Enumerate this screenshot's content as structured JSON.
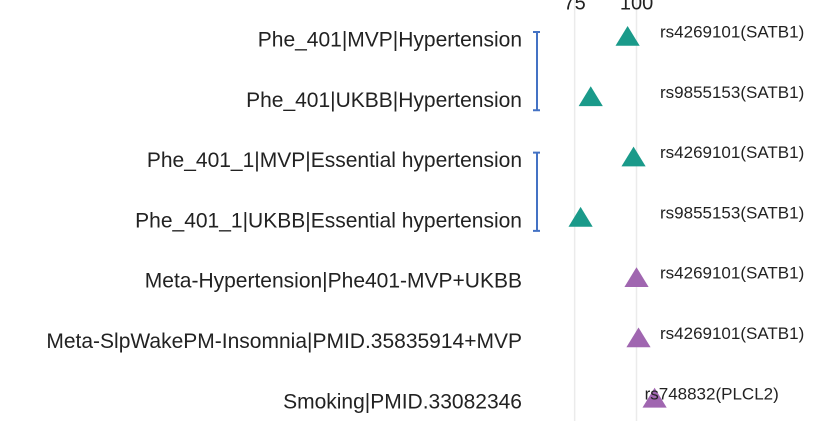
{
  "chart_data": {
    "type": "scatter",
    "marker": "triangle",
    "categories": [
      "Phe_401|MVP|Hypertension",
      "Phe_401|UKBB|Hypertension",
      "Phe_401_1|MVP|Essential hypertension",
      "Phe_401_1|UKBB|Essential hypertension",
      "Meta-Hypertension|Phe401-MVP+UKBB",
      "Meta-SlpWakePM-Insomnia|PMID.35835914+MVP",
      "Smoking|PMID.33082346"
    ],
    "values": [
      96.4,
      81.5,
      98.8,
      77.4,
      100,
      100.8,
      107.3
    ],
    "point_colors": [
      "#1a9a8a",
      "#1a9a8a",
      "#1a9a8a",
      "#1a9a8a",
      "#a066b0",
      "#a066b0",
      "#a066b0"
    ],
    "point_labels": [
      "rs4269101(SATB1)",
      "rs9855153(SATB1)",
      "rs4269101(SATB1)",
      "rs9855153(SATB1)",
      "rs4269101(SATB1)",
      "rs4269101(SATB1)",
      "rs748832(PLCL2)"
    ],
    "xlim": [
      61,
      181
    ],
    "xticks": [
      75,
      100
    ],
    "grid": true
  }
}
